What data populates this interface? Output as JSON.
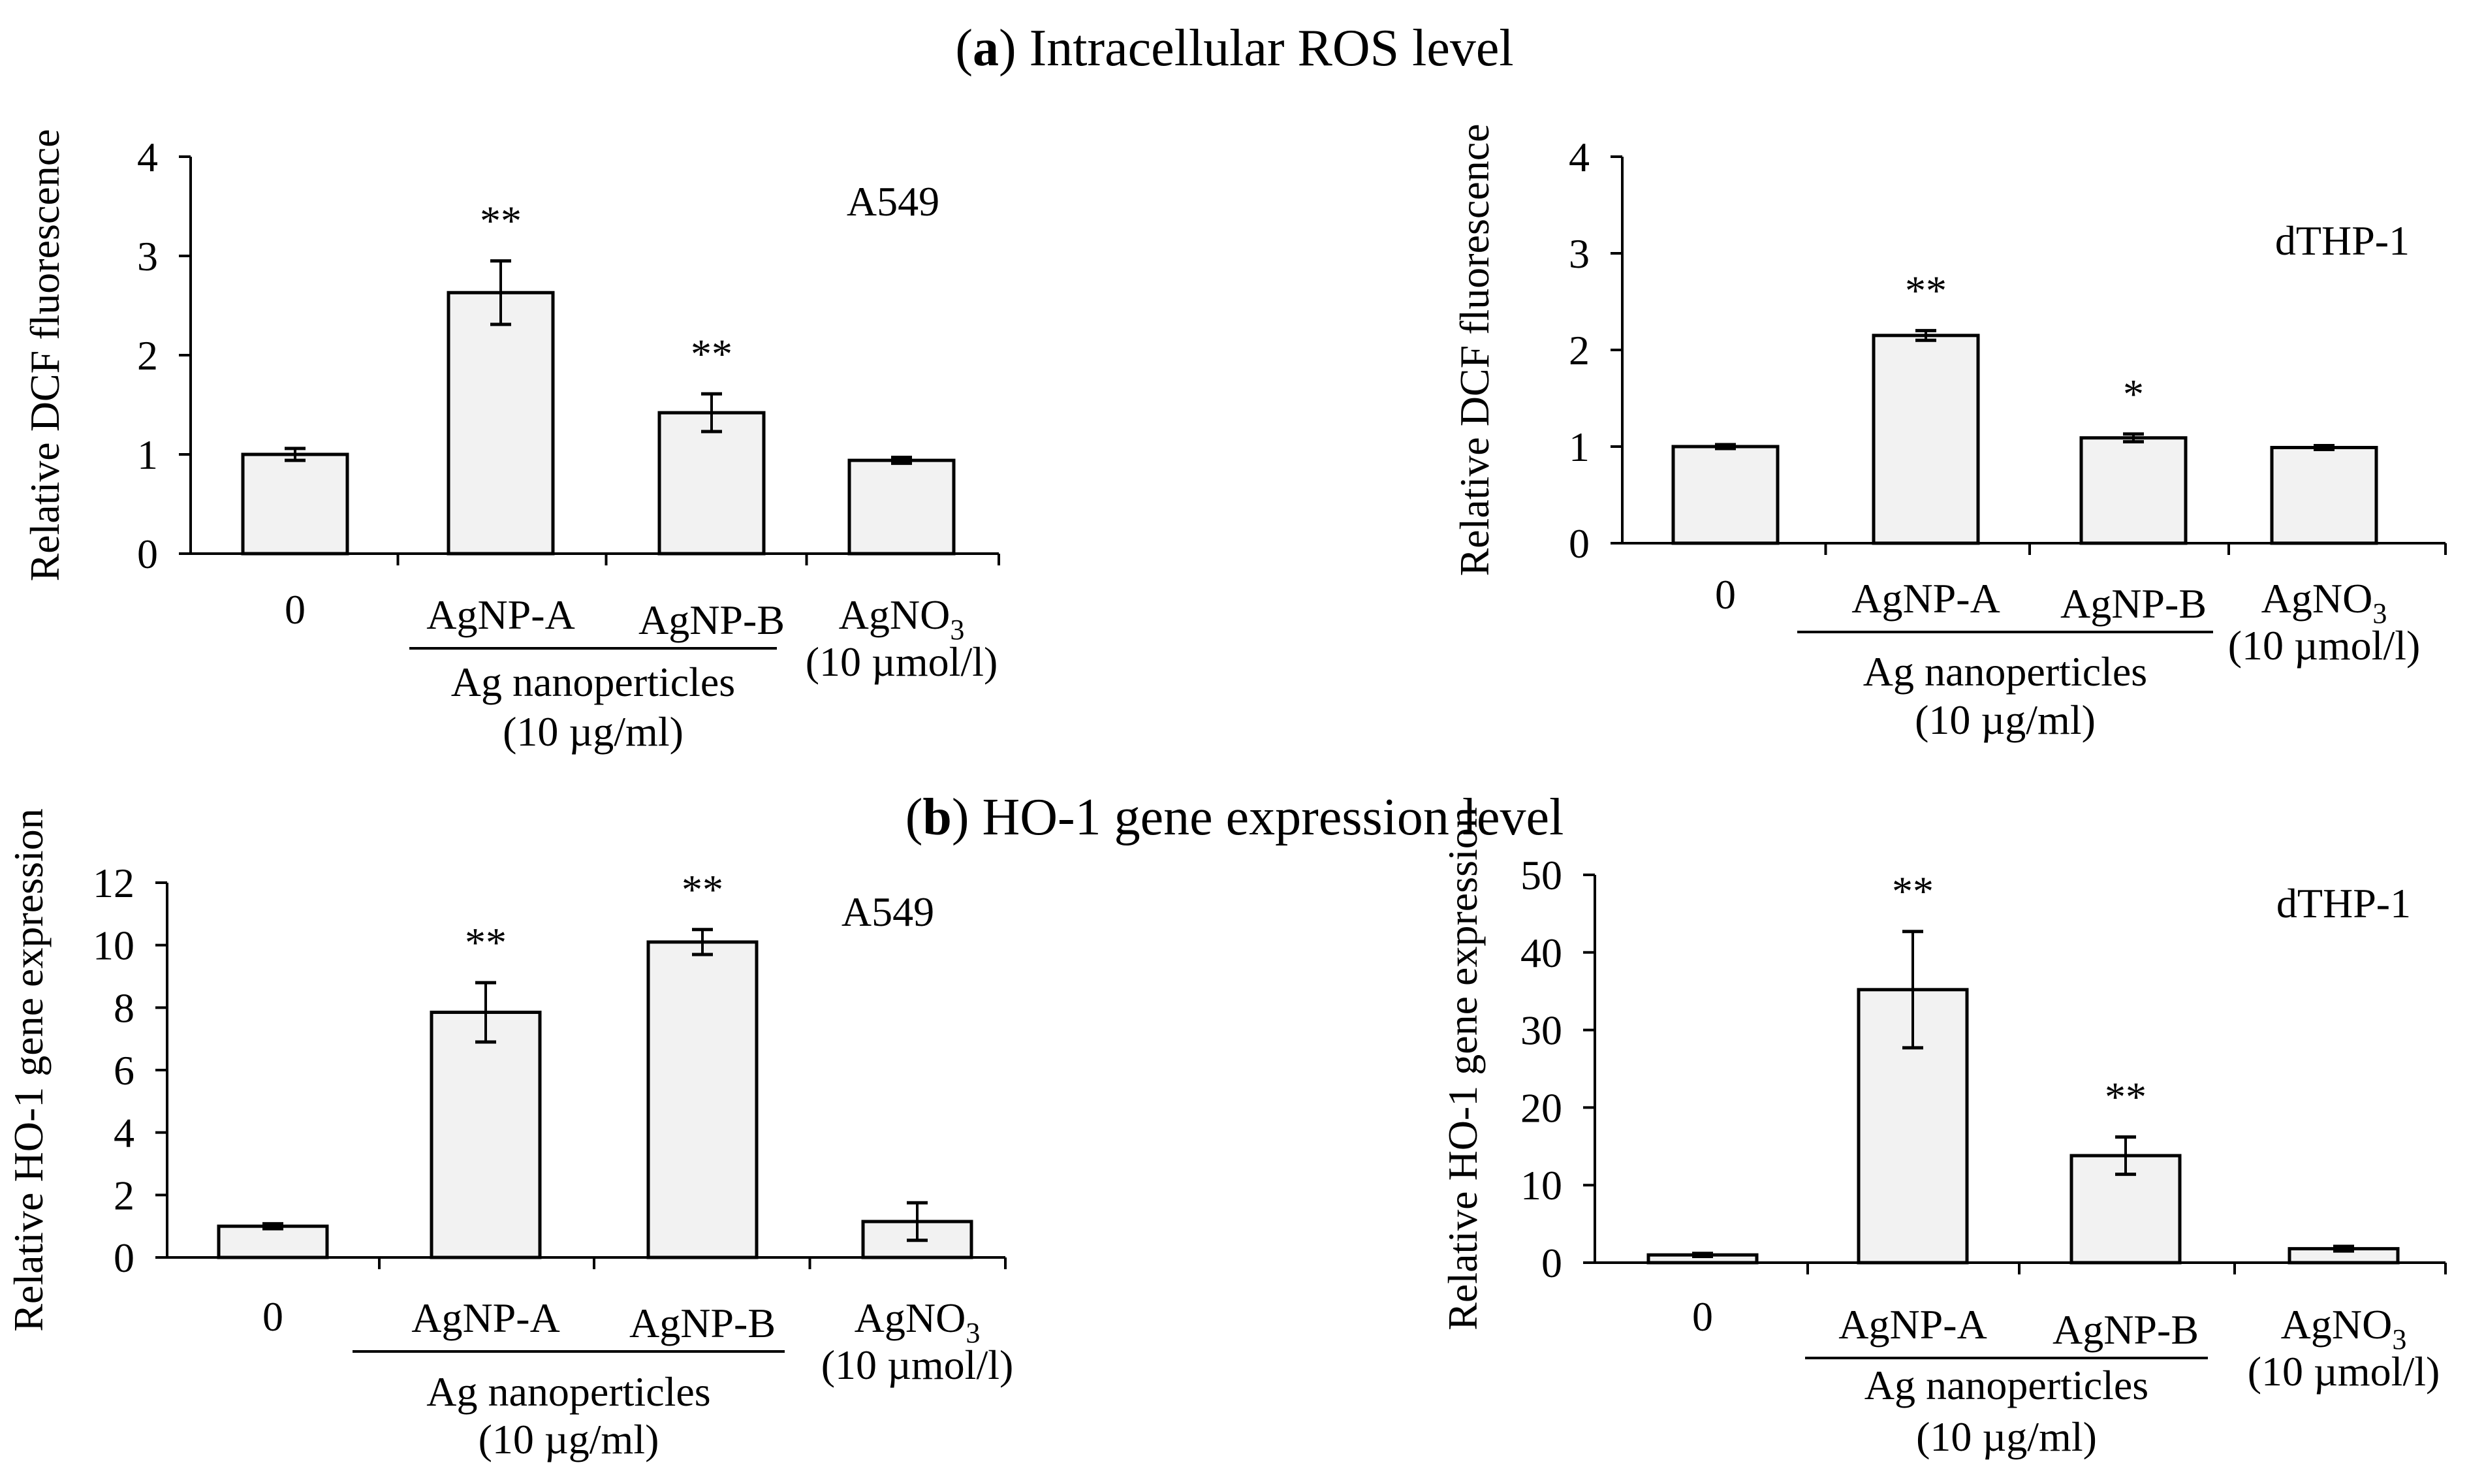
{
  "figure": {
    "section_a": {
      "letter": "a",
      "title": "Intracellular ROS level"
    },
    "section_b": {
      "letter": "b",
      "title": "HO-1 gene expression level"
    }
  },
  "colors": {
    "bar_fill": "#f2f2f2",
    "stroke": "#000000"
  },
  "chart_data": [
    {
      "id": "a-a549",
      "type": "bar",
      "cell_line": "A549",
      "ylabel": "Relative DCF fluorescence",
      "ylim": [
        0,
        4
      ],
      "yticks": [
        "0",
        "1",
        "2",
        "3",
        "4"
      ],
      "categories": [
        "0",
        "AgNP-A",
        "AgNP-B",
        "AgNO3"
      ],
      "values": [
        1.0,
        2.63,
        1.42,
        0.94
      ],
      "errors": [
        0.06,
        0.32,
        0.19,
        0.03
      ],
      "significance": [
        "",
        "**",
        "**",
        ""
      ],
      "group_label": "Ag nanoperticles",
      "group_conc": "(10 µg/ml)",
      "agno3_label": "AgNO",
      "agno3_sub": "3",
      "agno3_conc": "(10 µmol/l)"
    },
    {
      "id": "a-dthp1",
      "type": "bar",
      "cell_line": "dTHP-1",
      "ylabel": "Relative DCF fluorescence",
      "ylim": [
        0,
        4
      ],
      "yticks": [
        "0",
        "1",
        "2",
        "3",
        "4"
      ],
      "categories": [
        "0",
        "AgNP-A",
        "AgNP-B",
        "AgNO3"
      ],
      "values": [
        1.0,
        2.15,
        1.09,
        0.99
      ],
      "errors": [
        0.02,
        0.05,
        0.04,
        0.02
      ],
      "significance": [
        "",
        "**",
        "*",
        ""
      ],
      "group_label": "Ag nanoperticles",
      "group_conc": "(10 µg/ml)",
      "agno3_label": "AgNO",
      "agno3_sub": "3",
      "agno3_conc": "(10 µmol/l)"
    },
    {
      "id": "b-a549",
      "type": "bar",
      "cell_line": "A549",
      "ylabel": "Relative HO-1 gene expression",
      "ylim": [
        0,
        12
      ],
      "yticks": [
        "0",
        "2",
        "4",
        "6",
        "8",
        "10",
        "12"
      ],
      "categories": [
        "0",
        "AgNP-A",
        "AgNP-B",
        "AgNO3"
      ],
      "values": [
        1.0,
        7.85,
        10.1,
        1.15
      ],
      "errors": [
        0.08,
        0.95,
        0.4,
        0.6
      ],
      "significance": [
        "",
        "**",
        "**",
        ""
      ],
      "group_label": "Ag nanoperticles",
      "group_conc": "(10 µg/ml)",
      "agno3_label": "AgNO",
      "agno3_sub": "3",
      "agno3_conc": "(10 µmol/l)"
    },
    {
      "id": "b-dthp1",
      "type": "bar",
      "cell_line": "dTHP-1",
      "ylabel": "Relative HO-1 gene expression",
      "ylim": [
        0,
        50
      ],
      "yticks": [
        "0",
        "10",
        "20",
        "30",
        "40",
        "50"
      ],
      "categories": [
        "0",
        "AgNP-A",
        "AgNP-B",
        "AgNO3"
      ],
      "values": [
        1.0,
        35.2,
        13.8,
        1.8
      ],
      "errors": [
        0.2,
        7.5,
        2.4,
        0.3
      ],
      "significance": [
        "",
        "**",
        "**",
        ""
      ],
      "group_label": "Ag nanoperticles",
      "group_conc": "(10 µg/ml)",
      "agno3_label": "AgNO",
      "agno3_sub": "3",
      "agno3_conc": "(10 µmol/l)"
    }
  ]
}
